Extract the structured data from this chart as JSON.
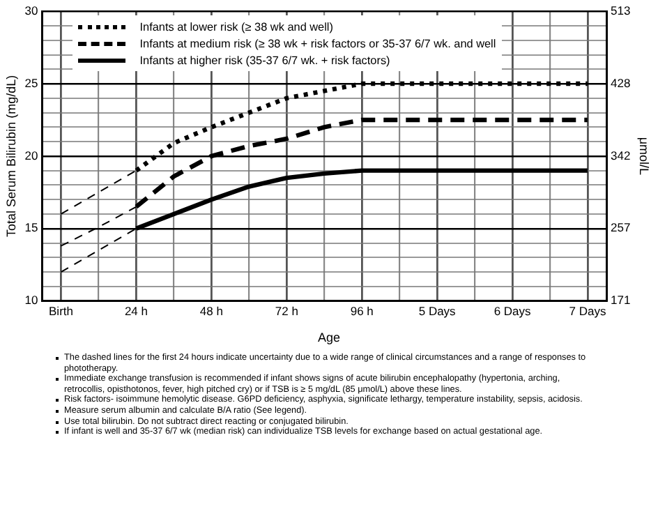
{
  "chart_data": {
    "type": "line",
    "xlabel": "Age",
    "ylabel": "Total Serum Bilirubin (mg/dL)",
    "y2label": "μmol/L",
    "categories": [
      "Birth",
      null,
      "24 h",
      null,
      "48 h",
      null,
      "72 h",
      null,
      "96 h",
      null,
      "5 Days",
      null,
      "6 Days",
      null,
      "7 Days"
    ],
    "ylim": [
      10,
      30
    ],
    "yticks": [
      10,
      {
        "value": 11,
        "label": null
      },
      {
        "value": 12,
        "label": null
      },
      {
        "value": 13,
        "label": null
      },
      {
        "value": 14,
        "label": null
      },
      15,
      {
        "value": 16,
        "label": null
      },
      {
        "value": 17,
        "label": null
      },
      {
        "value": 18,
        "label": null
      },
      {
        "value": 19,
        "label": null
      },
      20,
      {
        "value": 21,
        "label": null
      },
      {
        "value": 22,
        "label": null
      },
      {
        "value": 23,
        "label": null
      },
      {
        "value": 24,
        "label": null
      },
      25,
      {
        "value": 26,
        "label": null
      },
      {
        "value": 27,
        "label": null
      },
      {
        "value": 28,
        "label": null
      },
      {
        "value": 29,
        "label": null
      },
      30
    ],
    "y2lim": [
      171,
      513
    ],
    "y2ticks": [
      171,
      {
        "value": 256.5,
        "label": "257"
      },
      342,
      {
        "value": 427.5,
        "label": "428"
      },
      513
    ],
    "grid": true,
    "legend": "top left",
    "marker": "none",
    "series": [
      {
        "name": "Infants at lower risk (≥ 38 wk and well)",
        "color": "#000000",
        "line_style": "dotted",
        "values": [
          null,
          null,
          19,
          20.9,
          22,
          23,
          24,
          24.5,
          25,
          25,
          25,
          25,
          25,
          25,
          25
        ]
      },
      {
        "name": "Infants at medium risk (≥ 38 wk + risk factors or 35-37 6/7 wk. and well",
        "color": "#000000",
        "line_style": "dashed",
        "values": [
          null,
          null,
          16.5,
          18.6,
          20,
          20.7,
          21.2,
          22,
          22.5,
          22.5,
          22.5,
          22.5,
          22.5,
          22.5,
          22.5
        ]
      },
      {
        "name": "Infants at higher risk (35-37 6/7 wk. + risk factors)",
        "color": "#000000",
        "line_style": "solid",
        "values": [
          null,
          null,
          15,
          16,
          17,
          17.9,
          18.5,
          18.8,
          19,
          19,
          19,
          19,
          19,
          19,
          19
        ]
      },
      {
        "color": "#000000",
        "line_style": "dashed",
        "values": [
          16,
          17.5,
          19,
          null,
          null,
          null,
          null,
          null,
          null,
          null,
          null,
          null,
          null,
          null,
          null
        ]
      },
      {
        "color": "#000000",
        "line_style": "dashed",
        "values": [
          13.8,
          15.1,
          16.5,
          null,
          null,
          null,
          null,
          null,
          null,
          null,
          null,
          null,
          null,
          null,
          null
        ]
      },
      {
        "color": "#000000",
        "line_style": "dashed",
        "values": [
          12,
          13.5,
          15,
          null,
          null,
          null,
          null,
          null,
          null,
          null,
          null,
          null,
          null,
          null,
          null
        ]
      }
    ],
    "annotations": [
      "The dashed lines for the first 24 hours indicate uncertainty due to a wide range of clinical circumstances and a range of responses to phototherapy.",
      "Immediate exchange transfusion is recommended if infant shows signs of acute bilirubin encephalopathy (hypertonia, arching, retrocollis, opisthotonos, fever, high pitched cry) or if TSB is ≥ 5 mg/dL (85 μmol/L) above these lines.",
      "Risk factors- isoimmune hemolytic disease. G6PD deficiency, asphyxia, significate lethargy, temperature instability, sepsis, acidosis.",
      "Measure serum albumin and calculate B/A ratio (See legend).",
      "Use total bilirubin. Do not subtract direct reacting or conjugated bilirubin.",
      "If infant is well and 35-37 6/7 wk (median risk) can individualize TSB levels for exchange based on actual gestational age."
    ]
  }
}
